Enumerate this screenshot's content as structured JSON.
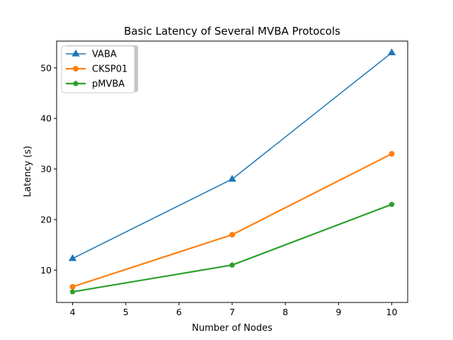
{
  "chart_data": {
    "type": "line",
    "title": "Basic Latency of Several MVBA Protocols",
    "xlabel": "Number of Nodes",
    "ylabel": "Latency (s)",
    "xlim": [
      3.7,
      10.3
    ],
    "ylim": [
      3.6,
      55.3
    ],
    "xticks": [
      4,
      5,
      6,
      7,
      8,
      9,
      10
    ],
    "yticks": [
      10,
      20,
      30,
      40,
      50
    ],
    "grid": false,
    "legend_position": "top-left",
    "series": [
      {
        "name": "VABA",
        "color": "#1f77b4",
        "marker": "triangle",
        "x": [
          4,
          7,
          10
        ],
        "values": [
          12.3,
          28,
          53
        ]
      },
      {
        "name": "CKSP01",
        "color": "#ff7f0e",
        "marker": "circle",
        "x": [
          4,
          7,
          10
        ],
        "values": [
          6.7,
          17,
          33
        ]
      },
      {
        "name": "pMVBA",
        "color": "#2ca02c",
        "marker": "pentagon",
        "x": [
          4,
          7,
          10
        ],
        "values": [
          5.7,
          11,
          23
        ]
      }
    ]
  }
}
